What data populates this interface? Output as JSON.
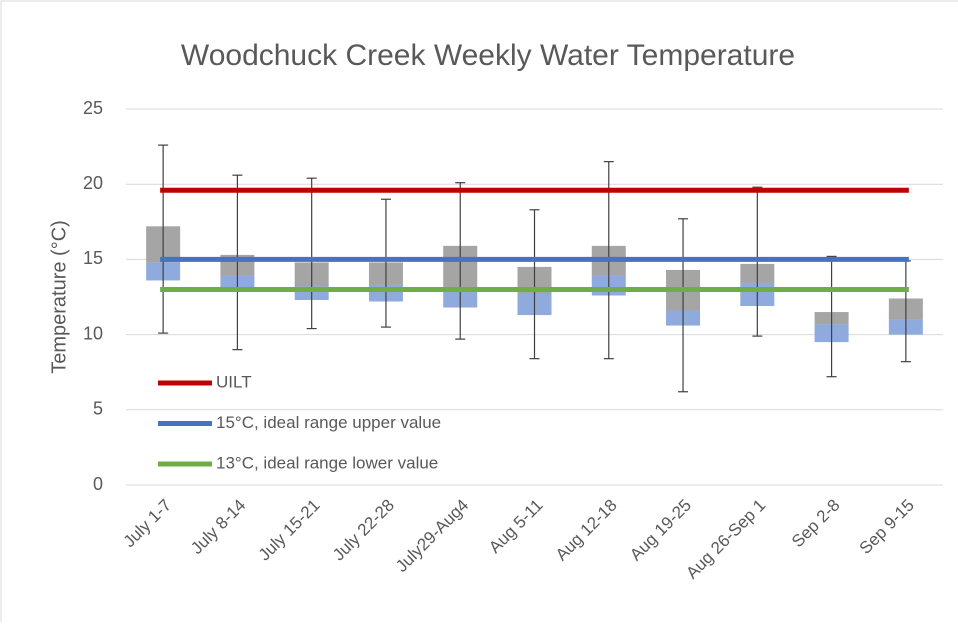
{
  "chart_data": {
    "type": "box",
    "title": "Woodchuck Creek Weekly Water Temperature",
    "y_label": "Temperature (°C)",
    "categories": [
      "July 1-7",
      "July 8-14",
      "July 15-21",
      "July 22-28",
      "July29-Aug4",
      "Aug 5-11",
      "Aug 12-18",
      "Aug 19-25",
      "Aug 26-Sep 1",
      "Sep 2-8",
      "Sep 9-15"
    ],
    "high": [
      22.6,
      20.6,
      20.4,
      19.0,
      20.1,
      18.3,
      21.5,
      17.7,
      19.8,
      15.2,
      14.9
    ],
    "q3": [
      17.2,
      15.3,
      14.8,
      14.8,
      15.9,
      14.5,
      15.9,
      14.3,
      14.7,
      11.5,
      12.4
    ],
    "median": [
      14.8,
      13.9,
      13.2,
      13.3,
      12.9,
      12.7,
      13.9,
      11.6,
      13.4,
      10.7,
      11.0
    ],
    "q1": [
      13.6,
      13.1,
      12.3,
      12.2,
      11.8,
      11.3,
      12.6,
      10.6,
      11.9,
      9.5,
      10.0
    ],
    "low": [
      10.1,
      9.0,
      10.4,
      10.5,
      9.7,
      8.4,
      8.4,
      6.2,
      9.9,
      7.2,
      8.2
    ],
    "upper_box_color": "#a5a5a5",
    "lower_box_color": "#8faadc",
    "whisker_color": "#404040",
    "lines": [
      {
        "name": "UILT",
        "color": "#c00000",
        "value": 19.6
      },
      {
        "name": "15°C, ideal range upper value",
        "color": "#4472c4",
        "value": 15
      },
      {
        "name": "13°C, ideal range lower value",
        "color": "#70ad47",
        "value": 13
      }
    ],
    "ylim": [
      0,
      25
    ],
    "yticks": [
      0,
      5,
      10,
      15,
      20,
      25
    ],
    "grid": true,
    "legend": "lower left"
  }
}
